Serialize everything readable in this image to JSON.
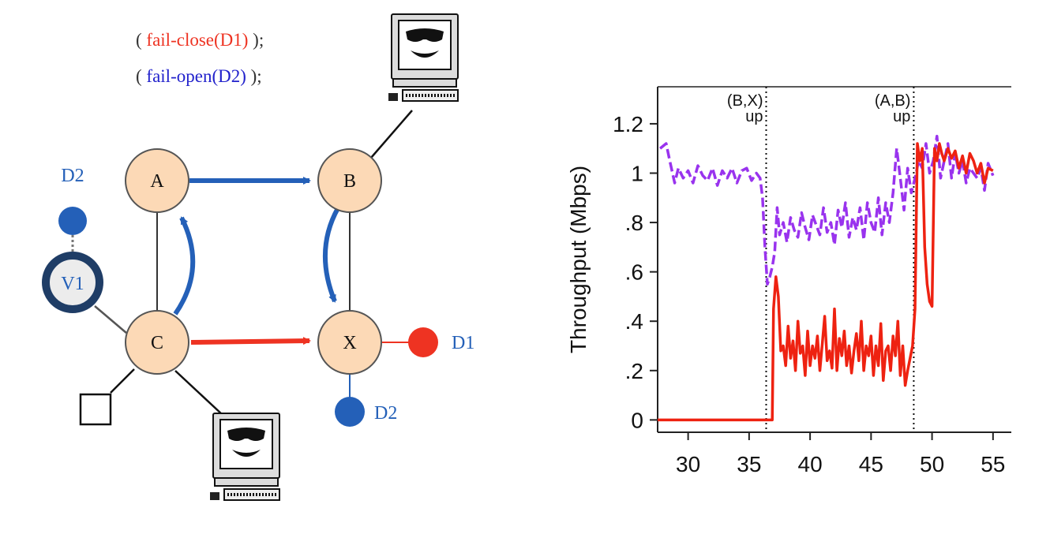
{
  "diagram": {
    "policy_lines": [
      {
        "open": "( ",
        "text": "fail-close(D1)",
        "close": " );",
        "color": "#ee3322"
      },
      {
        "open": "( ",
        "text": "fail-open(D2)",
        "close": " );",
        "color": "#2222cc"
      }
    ],
    "nodes": {
      "A": "A",
      "B": "B",
      "C": "C",
      "X": "X",
      "V1": "V1"
    },
    "endpoint_labels": {
      "d2_top": "D2",
      "d1": "D1",
      "d2_bottom": "D2"
    },
    "colors": {
      "node_fill": "#fcd9b6",
      "blue": "#2460b8",
      "red": "#ee3322",
      "dark_ring": "#1f3d66",
      "link": "#333333"
    }
  },
  "chart_data": {
    "type": "line",
    "xlabel": "",
    "ylabel": "Throughput (Mbps)",
    "xlim": [
      27.5,
      56.5
    ],
    "ylim": [
      -0.05,
      1.35
    ],
    "x_ticks": [
      30,
      35,
      40,
      45,
      50,
      55
    ],
    "x_tick_labels": [
      "30",
      "35",
      "40",
      "45",
      "50",
      "55"
    ],
    "y_ticks": [
      0,
      0.2,
      0.4,
      0.6,
      0.8,
      1.0,
      1.2
    ],
    "y_tick_labels": [
      "0",
      ".2",
      ".4",
      ".6",
      ".8",
      "1",
      "1.2"
    ],
    "annotations": [
      {
        "x": 36.4,
        "lines": [
          "(B,X)",
          "up"
        ]
      },
      {
        "x": 48.5,
        "lines": [
          "(A,B)",
          "up"
        ]
      }
    ],
    "series": [
      {
        "color": "#9933ee",
        "style": "dashed",
        "x": [
          27.7,
          28.2,
          28.5,
          28.9,
          29.2,
          29.6,
          30.0,
          30.4,
          30.8,
          31.2,
          31.6,
          32.0,
          32.4,
          32.8,
          33.2,
          33.6,
          34.0,
          34.4,
          34.8,
          35.2,
          35.6,
          35.9,
          36.1,
          36.3,
          36.5,
          36.7,
          36.9,
          37.1,
          37.3,
          37.5,
          37.8,
          38.1,
          38.4,
          38.7,
          39.0,
          39.3,
          39.6,
          39.9,
          40.2,
          40.5,
          40.8,
          41.1,
          41.4,
          41.7,
          42.0,
          42.3,
          42.6,
          42.9,
          43.2,
          43.5,
          43.8,
          44.1,
          44.4,
          44.7,
          45.0,
          45.3,
          45.6,
          45.9,
          46.2,
          46.5,
          46.8,
          47.1,
          47.4,
          47.7,
          48.0,
          48.3,
          48.6,
          48.9,
          49.2,
          49.5,
          49.8,
          50.1,
          50.4,
          50.7,
          51.0,
          51.3,
          51.6,
          51.9,
          52.2,
          52.5,
          52.8,
          53.1,
          53.4,
          53.7,
          54.0,
          54.3,
          54.6,
          55.0
        ],
        "y": [
          1.1,
          1.12,
          1.05,
          0.96,
          1.02,
          0.98,
          1.01,
          0.96,
          1.03,
          0.99,
          0.97,
          1.02,
          0.95,
          1.01,
          0.98,
          1.02,
          0.96,
          1.01,
          1.02,
          0.97,
          1.0,
          0.98,
          0.9,
          0.7,
          0.55,
          0.58,
          0.62,
          0.68,
          0.86,
          0.75,
          0.8,
          0.72,
          0.82,
          0.77,
          0.74,
          0.84,
          0.78,
          0.73,
          0.83,
          0.79,
          0.75,
          0.86,
          0.76,
          0.8,
          0.71,
          0.85,
          0.78,
          0.88,
          0.74,
          0.82,
          0.77,
          0.86,
          0.73,
          0.88,
          0.8,
          0.76,
          0.9,
          0.75,
          0.88,
          0.8,
          0.92,
          1.1,
          0.98,
          0.85,
          1.02,
          0.92,
          0.98,
          1.05,
          1.02,
          1.12,
          1.0,
          1.05,
          1.15,
          0.98,
          1.05,
          1.12,
          0.98,
          1.08,
          1.0,
          1.05,
          0.96,
          1.02,
          1.0,
          0.98,
          1.02,
          0.93,
          1.04,
          0.99
        ]
      },
      {
        "color": "#ee2211",
        "style": "solid",
        "x": [
          27.5,
          28.5,
          29.5,
          30.5,
          31.5,
          32.5,
          33.5,
          34.5,
          35.5,
          36.4,
          36.9,
          37.0,
          37.2,
          37.4,
          37.6,
          37.8,
          38.0,
          38.2,
          38.4,
          38.6,
          38.8,
          39.0,
          39.2,
          39.4,
          39.6,
          39.8,
          40.0,
          40.2,
          40.4,
          40.6,
          40.8,
          41.0,
          41.2,
          41.4,
          41.6,
          41.8,
          42.0,
          42.2,
          42.4,
          42.6,
          42.8,
          43.0,
          43.2,
          43.4,
          43.6,
          43.8,
          44.0,
          44.2,
          44.4,
          44.6,
          44.8,
          45.0,
          45.2,
          45.4,
          45.6,
          45.8,
          46.0,
          46.2,
          46.4,
          46.6,
          46.8,
          47.0,
          47.2,
          47.4,
          47.6,
          47.8,
          48.0,
          48.2,
          48.4,
          48.6,
          48.8,
          49.0,
          49.2,
          49.4,
          49.6,
          49.8,
          50.0,
          50.2,
          50.4,
          50.6,
          50.8,
          51.0,
          51.3,
          51.6,
          51.9,
          52.2,
          52.5,
          52.8,
          53.1,
          53.4,
          53.7,
          54.0,
          54.3,
          54.6,
          55.0
        ],
        "y": [
          0,
          0,
          0,
          0,
          0,
          0,
          0,
          0,
          0,
          0,
          0,
          0.45,
          0.58,
          0.5,
          0.28,
          0.3,
          0.22,
          0.38,
          0.25,
          0.32,
          0.2,
          0.4,
          0.27,
          0.3,
          0.18,
          0.36,
          0.22,
          0.3,
          0.25,
          0.34,
          0.2,
          0.31,
          0.42,
          0.24,
          0.28,
          0.21,
          0.45,
          0.2,
          0.33,
          0.26,
          0.36,
          0.22,
          0.3,
          0.19,
          0.28,
          0.35,
          0.24,
          0.4,
          0.2,
          0.3,
          0.26,
          0.34,
          0.18,
          0.3,
          0.22,
          0.39,
          0.16,
          0.28,
          0.3,
          0.2,
          0.34,
          0.26,
          0.4,
          0.18,
          0.3,
          0.14,
          0.2,
          0.25,
          0.3,
          0.45,
          1.12,
          1.05,
          1.1,
          0.7,
          0.55,
          0.48,
          0.46,
          1.1,
          1.05,
          1.12,
          1.08,
          1.05,
          1.1,
          1.06,
          1.09,
          1.02,
          1.07,
          1.0,
          1.08,
          1.05,
          1.0,
          1.04,
          0.96,
          1.02,
          1.01
        ]
      }
    ]
  }
}
